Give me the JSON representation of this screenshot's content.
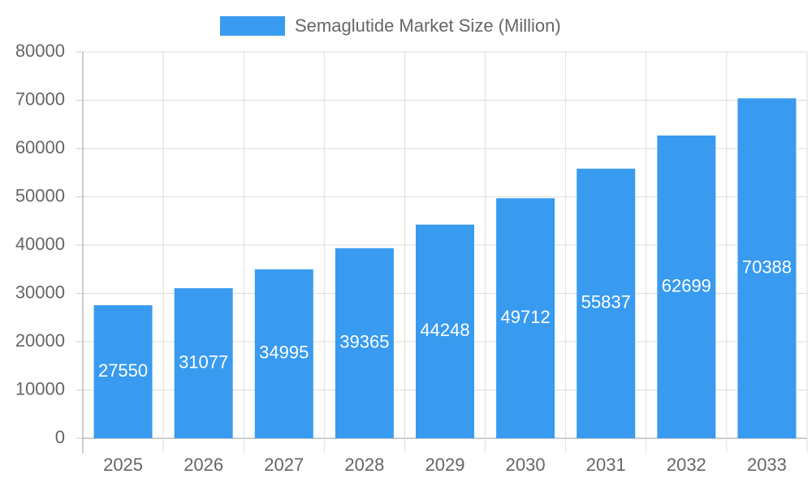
{
  "chart_data": {
    "type": "bar",
    "categories": [
      "2025",
      "2026",
      "2027",
      "2028",
      "2029",
      "2030",
      "2031",
      "2032",
      "2033"
    ],
    "series": [
      {
        "name": "Semaglutide Market Size (Million)",
        "color": "#389bf0",
        "values": [
          27550,
          31077,
          34995,
          39365,
          44248,
          49712,
          55837,
          62699,
          70388
        ]
      }
    ],
    "ylim": [
      0,
      80000
    ],
    "yticks": [
      0,
      10000,
      20000,
      30000,
      40000,
      50000,
      60000,
      70000,
      80000
    ],
    "grid": true,
    "legend": "top"
  }
}
